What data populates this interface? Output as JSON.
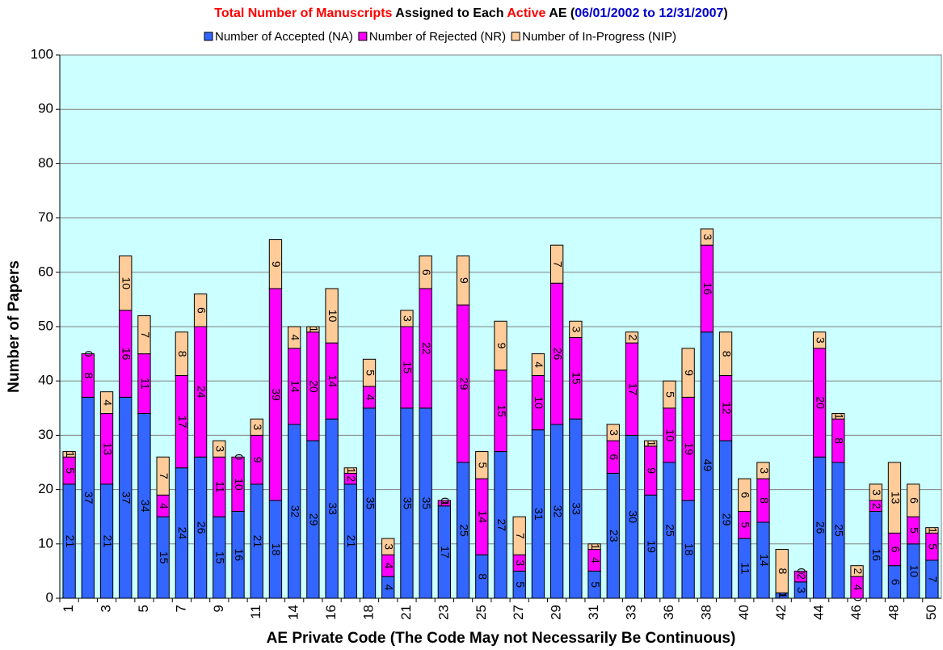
{
  "chart_data": {
    "type": "stacked_bar",
    "title_parts": [
      {
        "text": "Total Number of Manuscripts",
        "color": "#ff0000"
      },
      {
        "text": " Assigned to Each ",
        "color": "#000000"
      },
      {
        "text": "Active",
        "color": "#ff0000"
      },
      {
        "text": " AE (",
        "color": "#000000"
      },
      {
        "text": "06/01/2002 to 12/31/2007",
        "color": "#0000cc"
      },
      {
        "text": ")",
        "color": "#000000"
      }
    ],
    "x_label": "AE Private Code (The Code May not Necessarily Be Continuous)",
    "y_label": "Number of Papers",
    "categories": [
      "1",
      null,
      "3",
      null,
      "5",
      null,
      "7",
      null,
      "9",
      null,
      "11",
      null,
      "14",
      null,
      "16",
      null,
      "18",
      null,
      "21",
      null,
      "23",
      null,
      "25",
      null,
      "27",
      null,
      "29",
      null,
      "31",
      null,
      "33",
      null,
      "36",
      null,
      "38",
      null,
      "40",
      null,
      "42",
      null,
      "44",
      null,
      "46",
      null,
      "48",
      null,
      "50"
    ],
    "series": [
      {
        "name": "Number of Accepted (NA)",
        "color": "#3366ff",
        "values": [
          21,
          37,
          21,
          37,
          34,
          15,
          24,
          26,
          15,
          16,
          21,
          18,
          32,
          29,
          33,
          21,
          35,
          4,
          35,
          35,
          17,
          25,
          8,
          27,
          5,
          31,
          32,
          33,
          5,
          23,
          30,
          19,
          25,
          18,
          49,
          29,
          11,
          14,
          1,
          3,
          26,
          25,
          0,
          16,
          6,
          10,
          7
        ]
      },
      {
        "name": "Number of Rejected (NR)",
        "color": "#ff00ff",
        "values": [
          5,
          8,
          13,
          16,
          11,
          4,
          17,
          24,
          11,
          10,
          9,
          39,
          14,
          20,
          14,
          2,
          4,
          4,
          15,
          22,
          1,
          29,
          14,
          15,
          3,
          10,
          26,
          15,
          4,
          6,
          17,
          9,
          10,
          19,
          16,
          12,
          5,
          8,
          0,
          2,
          20,
          8,
          4,
          2,
          6,
          5,
          5
        ]
      },
      {
        "name": "Number of In-Progress (NIP)",
        "color": "#ffcc99",
        "values": [
          1,
          0,
          4,
          10,
          7,
          7,
          8,
          6,
          3,
          0,
          3,
          9,
          4,
          1,
          10,
          1,
          5,
          3,
          3,
          6,
          0,
          9,
          5,
          9,
          7,
          4,
          7,
          3,
          1,
          3,
          2,
          1,
          5,
          9,
          3,
          8,
          6,
          3,
          8,
          0,
          3,
          1,
          2,
          3,
          13,
          6,
          1
        ]
      }
    ],
    "ylim": [
      0,
      100
    ],
    "yticks": [
      0,
      10,
      20,
      30,
      40,
      50,
      60,
      70,
      80,
      90,
      100
    ],
    "grid": true,
    "legend": "top",
    "background": "#ccffff"
  }
}
